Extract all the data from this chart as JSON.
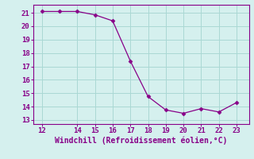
{
  "x": [
    12,
    13,
    14,
    15,
    16,
    17,
    18,
    19,
    20,
    21,
    22,
    23
  ],
  "y": [
    21.1,
    21.1,
    21.1,
    20.85,
    20.4,
    17.4,
    14.75,
    13.75,
    13.5,
    13.85,
    13.6,
    14.3
  ],
  "line_color": "#880088",
  "marker": "D",
  "marker_size": 2.5,
  "bg_color": "#d5f0ee",
  "grid_color": "#aad8d4",
  "axis_color": "#880088",
  "xlabel": "Windchill (Refroidissement éolien,°C)",
  "xlabel_fontsize": 7,
  "tick_fontsize": 6.5,
  "xlim": [
    11.5,
    23.7
  ],
  "ylim": [
    12.7,
    21.6
  ],
  "xticks": [
    12,
    14,
    15,
    16,
    17,
    18,
    19,
    20,
    21,
    22,
    23
  ],
  "yticks": [
    13,
    14,
    15,
    16,
    17,
    18,
    19,
    20,
    21
  ],
  "figwidth": 3.2,
  "figheight": 2.0,
  "dpi": 100
}
